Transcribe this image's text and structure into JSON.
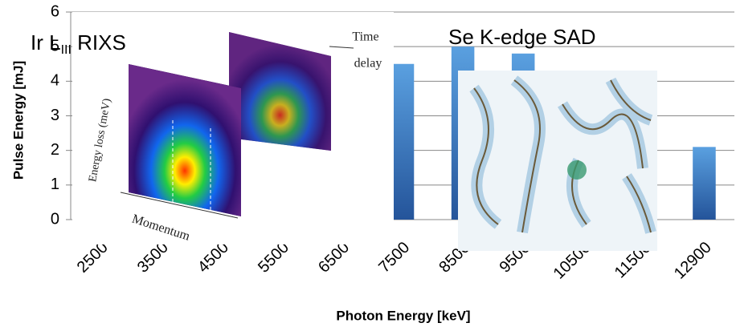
{
  "chart_data": {
    "type": "bar",
    "y_label": "Pulse Energy [mJ]",
    "x_label": "Photon Energy [keV]",
    "categories": [
      "2500",
      "3500",
      "4500",
      "5500",
      "6500",
      "7500",
      "8500",
      "9500",
      "10500",
      "11500",
      "12900"
    ],
    "values": [
      null,
      null,
      null,
      null,
      null,
      4.5,
      5.0,
      4.8,
      null,
      null,
      2.1
    ],
    "color": "#3a78c0",
    "ylim": [
      0,
      6
    ],
    "yticks": [
      0,
      1,
      2,
      3,
      4,
      5,
      6
    ],
    "grid": true,
    "annotations": [
      {
        "main": "Ir L",
        "subscript": "III",
        "suffix": " RIXS"
      },
      {
        "main": "Se K-edge SAD"
      }
    ],
    "inset_texts": [
      "Time",
      "delay",
      "Energy loss (meV)",
      "Momentum"
    ]
  }
}
